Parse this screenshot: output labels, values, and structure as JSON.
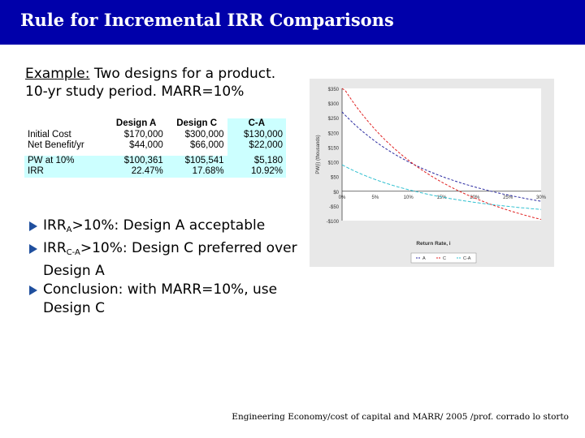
{
  "slide": {
    "title": "Rule for Incremental IRR Comparisons",
    "example_label": "Example:",
    "example_text": " Two designs for a product.",
    "example_line2": "10-yr study period. MARR=10%",
    "footer": "Engineering Economy/cost of capital and MARR/ 2005 /prof. corrado lo storto"
  },
  "table": {
    "headers": [
      "",
      "Design A",
      "Design C",
      "C-A"
    ],
    "rows": [
      [
        "Initial Cost",
        "$170,000",
        "$300,000",
        "$130,000"
      ],
      [
        "Net Benefit/yr",
        "$44,000",
        "$66,000",
        "$22,000"
      ],
      [
        "PW at 10%",
        "$100,361",
        "$105,541",
        "$5,180"
      ],
      [
        "IRR",
        "22.47%",
        "17.68%",
        "10.92%"
      ]
    ]
  },
  "bullets": [
    {
      "pre": "IRR",
      "sub": "A",
      "post": ">10%: Design A acceptable"
    },
    {
      "pre": "IRR",
      "sub": "C-A",
      "post": ">10%: Design C preferred over Design A"
    },
    {
      "pre": "Conclusion: with MARR=10%, use Design C",
      "sub": "",
      "post": ""
    }
  ],
  "chart_data": {
    "type": "line",
    "title": "",
    "xlabel": "Return Rate, i",
    "ylabel": "PW(i) (thousands)",
    "x": [
      0,
      5,
      10,
      15,
      20,
      25,
      30
    ],
    "x_tick_labels": [
      "0%",
      "5%",
      "10%",
      "15%",
      "20%",
      "25%",
      "30%"
    ],
    "y_tick_values": [
      350,
      300,
      250,
      200,
      150,
      100,
      50,
      0,
      -50,
      -100
    ],
    "y_tick_labels": [
      "$350",
      "$300",
      "$250",
      "$200",
      "$150",
      "$100",
      "$50",
      "$0",
      "-$50",
      "-$100"
    ],
    "ylim": [
      -100,
      350
    ],
    "xlim": [
      0,
      30
    ],
    "series": [
      {
        "name": "A",
        "color": "#2a2aa0",
        "dash": "3,2",
        "initial_cost": 170,
        "annual_benefit": 44
      },
      {
        "name": "C",
        "color": "#e02020",
        "dash": "3,2",
        "initial_cost": 300,
        "annual_benefit": 66
      },
      {
        "name": "C-A",
        "color": "#30c0d0",
        "dash": "4,2",
        "initial_cost": 130,
        "annual_benefit": 22
      }
    ],
    "legend": [
      "A",
      "C",
      "C-A"
    ],
    "legend_position": "bottom",
    "study_period_years": 10
  }
}
